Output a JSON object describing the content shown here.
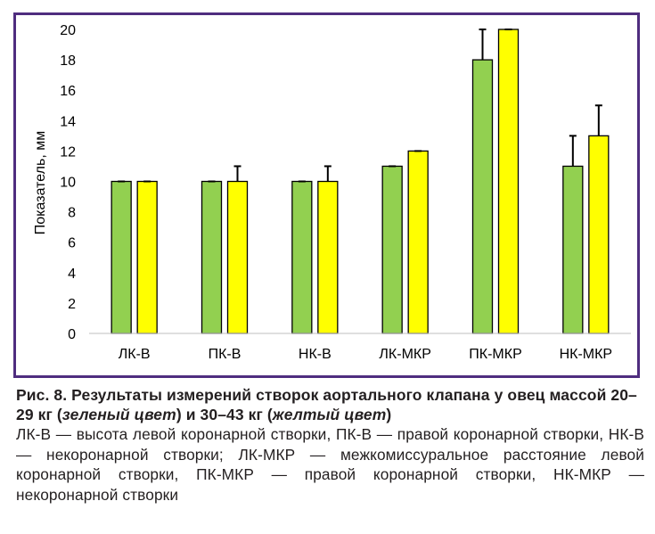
{
  "chart_data": {
    "type": "bar",
    "ylabel": "Показатель, мм",
    "ylim": [
      0,
      20
    ],
    "yticks": [
      0,
      2,
      4,
      6,
      8,
      10,
      12,
      14,
      16,
      18,
      20
    ],
    "grid": false,
    "categories": [
      "ЛК-В",
      "ПК-В",
      "НК-В",
      "ЛК-МКР",
      "ПК-МКР",
      "НК-МКР"
    ],
    "series": [
      {
        "values": [
          10,
          10,
          10,
          11,
          18,
          11
        ],
        "errors": [
          0,
          0,
          0,
          0,
          2,
          2
        ],
        "color": "#92d050"
      },
      {
        "values": [
          10,
          10,
          10,
          12,
          20,
          13
        ],
        "errors": [
          0,
          1,
          1,
          0,
          0,
          2
        ],
        "color": "#ffff00"
      }
    ]
  },
  "caption": {
    "title_prefix": "Рис. 8. Результаты измерений створок аортального клапана у овец массой 20–29 кг (",
    "green_label": "зеленый цвет",
    "title_middle": ") и 30–43 кг (",
    "yellow_label": "желтый цвет",
    "title_suffix": ")",
    "body": "ЛК-В — высота левой коронарной створки, ПК-В — правой коронарной створки, НК-В — некоронарной створки; ЛК-МКР — межкомиссуральное расстояние левой коронарной створки, ПК-МКР — правой коронарной створки, НК-МКР — некоронарной створки"
  },
  "colors": {
    "frame": "#4f2d7f",
    "green": "#92d050",
    "yellow": "#ffff00"
  }
}
